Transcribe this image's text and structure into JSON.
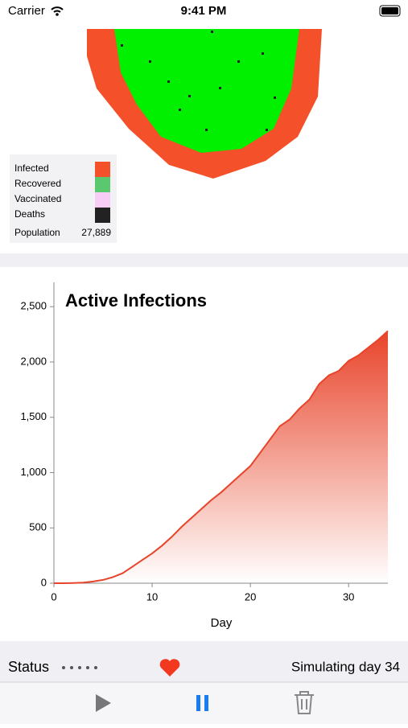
{
  "status_bar": {
    "carrier": "Carrier",
    "time": "9:41 PM"
  },
  "legend": {
    "items": [
      {
        "label": "Infected",
        "color": "#f4502a"
      },
      {
        "label": "Recovered",
        "color": "#5ac86e"
      },
      {
        "label": "Vaccinated",
        "color": "#f7ccf5"
      },
      {
        "label": "Deaths",
        "color": "#222222"
      }
    ],
    "population": {
      "label": "Population",
      "value": "27,889"
    }
  },
  "chart_data": {
    "type": "area",
    "title": "Active Infections",
    "x_label": "Day",
    "x": [
      0,
      1,
      2,
      3,
      4,
      5,
      6,
      7,
      8,
      9,
      10,
      11,
      12,
      13,
      14,
      15,
      16,
      17,
      18,
      19,
      20,
      21,
      22,
      23,
      24,
      25,
      26,
      27,
      28,
      29,
      30,
      31,
      32,
      33,
      34
    ],
    "series": [
      {
        "name": "Active Infections",
        "color": "#e8442a",
        "values": [
          0,
          0,
          2,
          5,
          15,
          30,
          55,
          90,
          150,
          210,
          270,
          340,
          420,
          510,
          590,
          670,
          750,
          820,
          900,
          980,
          1060,
          1180,
          1300,
          1420,
          1480,
          1580,
          1660,
          1800,
          1880,
          1920,
          2010,
          2060,
          2130,
          2200,
          2280
        ]
      }
    ],
    "xlim": [
      0,
      34
    ],
    "ylim": [
      0,
      2720
    ],
    "xticks": [
      0,
      10,
      20,
      30
    ],
    "yticks": [
      0,
      500,
      {
        "value": 1000,
        "label": "1,000"
      },
      {
        "value": 1500,
        "label": "1,500"
      },
      {
        "value": 2000,
        "label": "2,000"
      },
      {
        "value": 2500,
        "label": "2,500"
      }
    ]
  },
  "footer": {
    "status": "Status",
    "message": "Simulating day 34"
  }
}
